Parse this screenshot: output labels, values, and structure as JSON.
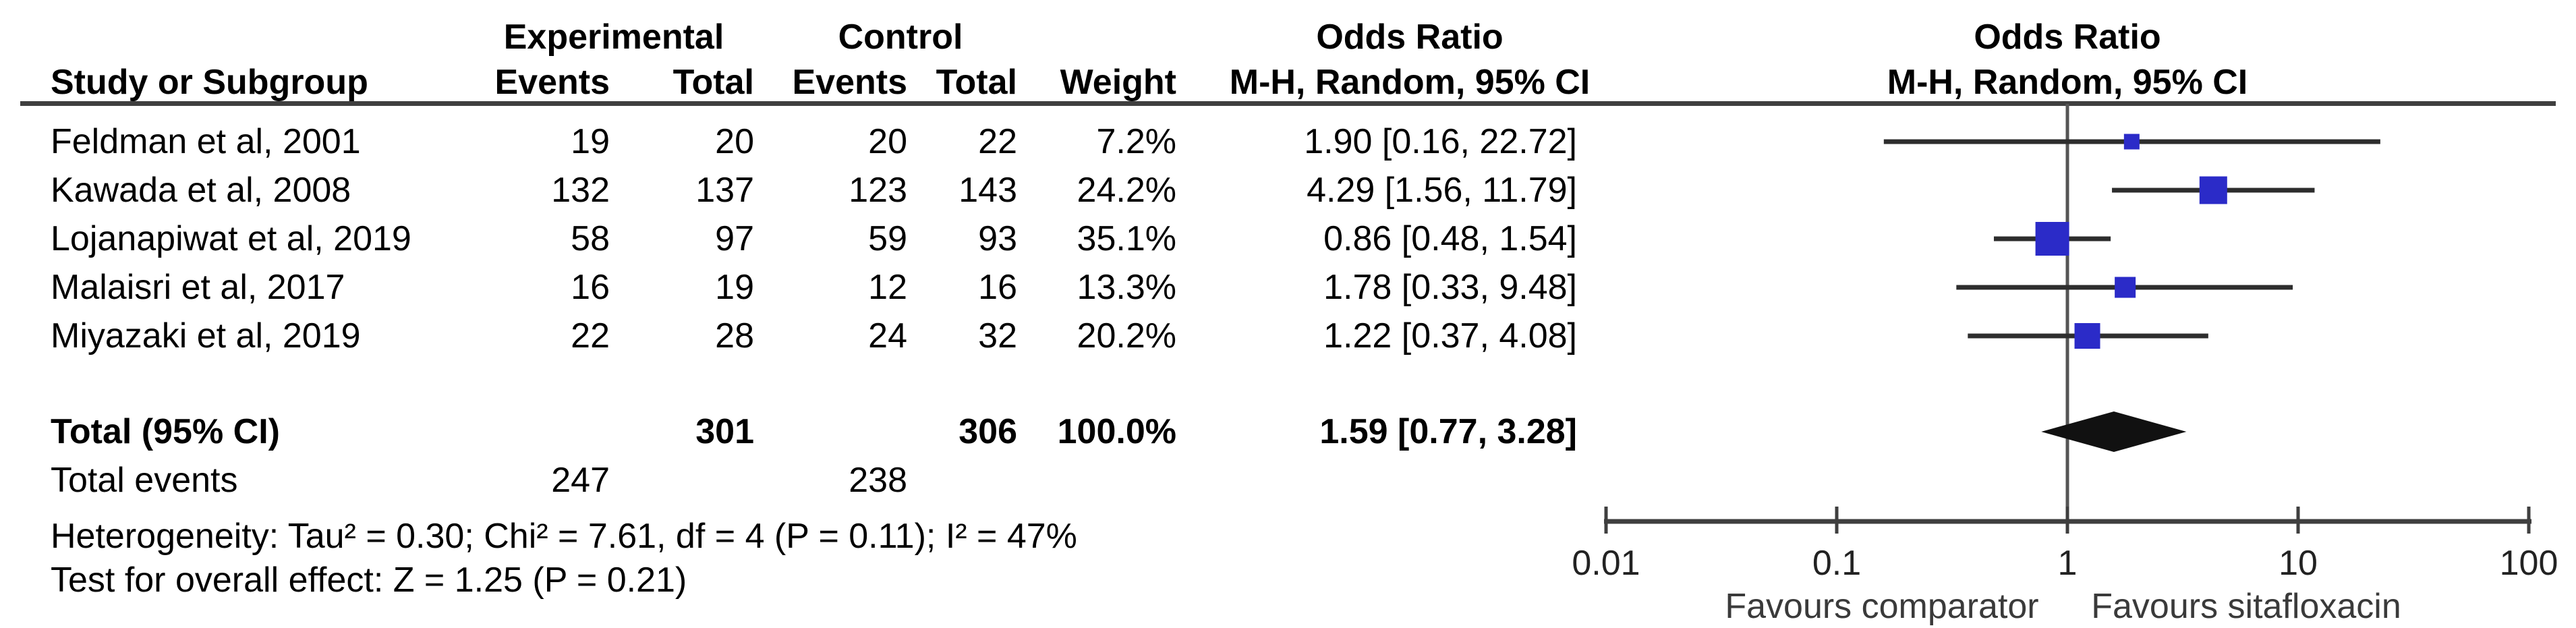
{
  "table": {
    "headers": {
      "experimental": "Experimental",
      "control": "Control",
      "odds_ratio": "Odds Ratio",
      "study": "Study or Subgroup",
      "events": "Events",
      "total": "Total",
      "weight": "Weight",
      "mh_random": "M-H, Random, 95% CI"
    },
    "rows": [
      {
        "name": "Feldman et al, 2001",
        "exp_events": "19",
        "exp_total": "20",
        "ctrl_events": "20",
        "ctrl_total": "22",
        "weight": "7.2%",
        "or_ci": "1.90 [0.16, 22.72]"
      },
      {
        "name": "Kawada et al, 2008",
        "exp_events": "132",
        "exp_total": "137",
        "ctrl_events": "123",
        "ctrl_total": "143",
        "weight": "24.2%",
        "or_ci": "4.29 [1.56, 11.79]"
      },
      {
        "name": "Lojanapiwat et al, 2019",
        "exp_events": "58",
        "exp_total": "97",
        "ctrl_events": "59",
        "ctrl_total": "93",
        "weight": "35.1%",
        "or_ci": "0.86 [0.48, 1.54]"
      },
      {
        "name": "Malaisri et al, 2017",
        "exp_events": "16",
        "exp_total": "19",
        "ctrl_events": "12",
        "ctrl_total": "16",
        "weight": "13.3%",
        "or_ci": "1.78 [0.33, 9.48]"
      },
      {
        "name": "Miyazaki et al, 2019",
        "exp_events": "22",
        "exp_total": "28",
        "ctrl_events": "24",
        "ctrl_total": "32",
        "weight": "20.2%",
        "or_ci": "1.22 [0.37, 4.08]"
      }
    ],
    "total_row": {
      "label": "Total (95% CI)",
      "exp_total": "301",
      "ctrl_total": "306",
      "weight": "100.0%",
      "or_ci": "1.59 [0.77, 3.28]"
    },
    "total_events_row": {
      "label": "Total events",
      "exp": "247",
      "ctrl": "238"
    },
    "heterogeneity": "Heterogeneity: Tau² = 0.30; Chi² = 7.61, df = 4 (P = 0.11); I² = 47%",
    "overall_effect": "Test for overall effect: Z = 1.25 (P = 0.21)"
  },
  "plot": {
    "title": "Odds Ratio",
    "subtitle": "M-H, Random, 95% CI",
    "tick_labels": [
      "0.01",
      "0.1",
      "1",
      "10",
      "100"
    ],
    "favours_left": "Favours comparator",
    "favours_right": "Favours sitafloxacin"
  },
  "colors": {
    "marker_blue": "#2B2BC8",
    "diamond_black": "#111111",
    "axis_gray": "#3f3f3f",
    "ci_black": "#2d2d2d",
    "favours_gray": "#3a3a3a"
  },
  "chart_data": {
    "type": "forest",
    "effect_measure": "Odds Ratio",
    "method": "M-H, Random, 95% CI",
    "x_scale": "log10",
    "axis_ticks": [
      0.01,
      0.1,
      1,
      10,
      100
    ],
    "axis_range": [
      0.01,
      100
    ],
    "studies": [
      {
        "name": "Feldman et al, 2001",
        "exp_events": 19,
        "exp_total": 20,
        "ctrl_events": 20,
        "ctrl_total": 22,
        "weight_pct": 7.2,
        "or": 1.9,
        "ci_low": 0.16,
        "ci_high": 22.72
      },
      {
        "name": "Kawada et al, 2008",
        "exp_events": 132,
        "exp_total": 137,
        "ctrl_events": 123,
        "ctrl_total": 143,
        "weight_pct": 24.2,
        "or": 4.29,
        "ci_low": 1.56,
        "ci_high": 11.79
      },
      {
        "name": "Lojanapiwat et al, 2019",
        "exp_events": 58,
        "exp_total": 97,
        "ctrl_events": 59,
        "ctrl_total": 93,
        "weight_pct": 35.1,
        "or": 0.86,
        "ci_low": 0.48,
        "ci_high": 1.54
      },
      {
        "name": "Malaisri et al, 2017",
        "exp_events": 16,
        "exp_total": 19,
        "ctrl_events": 12,
        "ctrl_total": 16,
        "weight_pct": 13.3,
        "or": 1.78,
        "ci_low": 0.33,
        "ci_high": 9.48
      },
      {
        "name": "Miyazaki et al, 2019",
        "exp_events": 22,
        "exp_total": 28,
        "ctrl_events": 24,
        "ctrl_total": 32,
        "weight_pct": 20.2,
        "or": 1.22,
        "ci_low": 0.37,
        "ci_high": 4.08
      }
    ],
    "total": {
      "exp_total": 301,
      "ctrl_total": 306,
      "weight_pct": 100.0,
      "or": 1.59,
      "ci_low": 0.77,
      "ci_high": 3.28
    },
    "total_events": {
      "experimental": 247,
      "control": 238
    },
    "heterogeneity": {
      "tau2": 0.3,
      "chi2": 7.61,
      "df": 4,
      "p": 0.11,
      "i2_pct": 47
    },
    "overall_effect": {
      "z": 1.25,
      "p": 0.21
    },
    "favours_left": "Favours comparator",
    "favours_right": "Favours sitafloxacin"
  }
}
